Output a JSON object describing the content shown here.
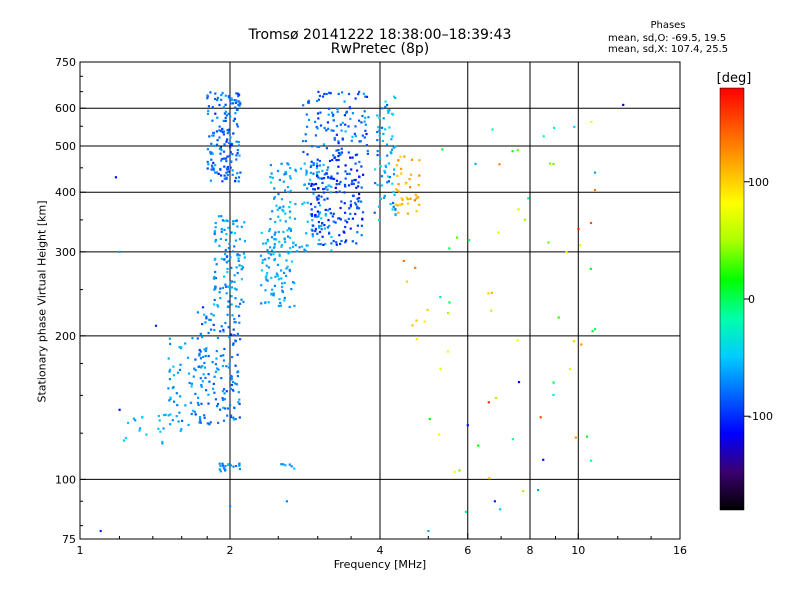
{
  "header": {
    "title_line1": "Tromsø 20141222 18:38:00–18:39:43",
    "title_line2": "RwPretec (8p)",
    "phase_title": "Phases",
    "phase_o": "mean, sd,O: -69.5, 19.5",
    "phase_x": "mean, sd,X: 107.4, 25.5"
  },
  "colorbar": {
    "label": "[deg]",
    "min": -180,
    "max": 180,
    "ticks": [
      {
        "value": 100,
        "label": "100"
      },
      {
        "value": 0,
        "label": "0"
      },
      {
        "value": -100,
        "label": "-100"
      }
    ],
    "stops": [
      "#000000",
      "#3a0070",
      "#0000ff",
      "#0066ff",
      "#00ccff",
      "#00ffaa",
      "#00ff00",
      "#aaff00",
      "#ffff00",
      "#ffaa00",
      "#ff5500",
      "#ff0000"
    ]
  },
  "chart_data": {
    "type": "scatter",
    "title": "Tromsø 20141222 18:38:00–18:39:43",
    "subtitle": "RwPretec (8p)",
    "xlabel": "Frequency [MHz]",
    "ylabel": "Stationary phase Virtual Height [km]",
    "x_scale": "log",
    "y_scale": "log",
    "xlim": [
      1,
      16
    ],
    "ylim": [
      75,
      750
    ],
    "x_ticks": [
      {
        "value": 1,
        "label": "1"
      },
      {
        "value": 2,
        "label": "2"
      },
      {
        "value": 4,
        "label": "4"
      },
      {
        "value": 6,
        "label": "6"
      },
      {
        "value": 8,
        "label": "8"
      },
      {
        "value": 10,
        "label": "10"
      },
      {
        "value": 16,
        "label": "16"
      }
    ],
    "y_ticks": [
      {
        "value": 75,
        "label": "75"
      },
      {
        "value": 100,
        "label": "100"
      },
      {
        "value": 200,
        "label": "200"
      },
      {
        "value": 300,
        "label": "300"
      },
      {
        "value": 400,
        "label": "400"
      },
      {
        "value": 500,
        "label": "500"
      },
      {
        "value": 600,
        "label": "600"
      },
      {
        "value": 750,
        "label": "750"
      }
    ],
    "grid_x": [
      2,
      4,
      6,
      8,
      10
    ],
    "grid_y": [
      100,
      200,
      300,
      400,
      500,
      600
    ],
    "grid": true,
    "color_by": "phase",
    "clusters": [
      {
        "fmin": 1.8,
        "fmax": 2.1,
        "hmin": 420,
        "hmax": 650,
        "count": 160,
        "phase": -80,
        "spread": 30
      },
      {
        "fmin": 1.85,
        "fmax": 2.15,
        "hmin": 230,
        "hmax": 360,
        "count": 110,
        "phase": -65,
        "spread": 25
      },
      {
        "fmin": 1.7,
        "fmax": 2.1,
        "hmin": 130,
        "hmax": 230,
        "count": 140,
        "phase": -75,
        "spread": 25
      },
      {
        "fmin": 1.5,
        "fmax": 1.8,
        "hmin": 130,
        "hmax": 200,
        "count": 60,
        "phase": -65,
        "spread": 20
      },
      {
        "fmin": 1.2,
        "fmax": 1.7,
        "hmin": 118,
        "hmax": 140,
        "count": 25,
        "phase": -55,
        "spread": 15
      },
      {
        "fmin": 1.9,
        "fmax": 2.1,
        "hmin": 104,
        "hmax": 108,
        "count": 20,
        "phase": -70,
        "spread": 20
      },
      {
        "fmin": 2.5,
        "fmax": 2.7,
        "hmin": 103,
        "hmax": 108,
        "count": 6,
        "phase": -60,
        "spread": 20
      },
      {
        "fmin": 2.3,
        "fmax": 2.7,
        "hmin": 230,
        "hmax": 340,
        "count": 90,
        "phase": -60,
        "spread": 20
      },
      {
        "fmin": 2.4,
        "fmax": 3.2,
        "hmin": 300,
        "hmax": 460,
        "count": 140,
        "phase": -60,
        "spread": 22
      },
      {
        "fmin": 2.9,
        "fmax": 3.7,
        "hmin": 310,
        "hmax": 480,
        "count": 170,
        "phase": -95,
        "spread": 25
      },
      {
        "fmin": 2.8,
        "fmax": 3.8,
        "hmin": 480,
        "hmax": 650,
        "count": 110,
        "phase": -80,
        "spread": 30
      },
      {
        "fmin": 3.9,
        "fmax": 4.3,
        "hmin": 350,
        "hmax": 640,
        "count": 70,
        "phase": -60,
        "spread": 40
      },
      {
        "fmin": 4.3,
        "fmax": 4.8,
        "hmin": 360,
        "hmax": 480,
        "count": 40,
        "phase": 110,
        "spread": 25
      },
      {
        "fmin": 4.4,
        "fmax": 5.0,
        "hmin": 180,
        "hmax": 300,
        "count": 8,
        "phase": 100,
        "spread": 40
      },
      {
        "fmin": 5.0,
        "fmax": 11.0,
        "hmin": 80,
        "hmax": 660,
        "count": 55,
        "phase": 40,
        "spread": 130
      }
    ],
    "points": [
      {
        "x": 1.1,
        "y": 78,
        "phase": -100
      },
      {
        "x": 1.18,
        "y": 430,
        "phase": -110
      },
      {
        "x": 1.2,
        "y": 140,
        "phase": -110
      },
      {
        "x": 1.2,
        "y": 300,
        "phase": -60
      },
      {
        "x": 1.42,
        "y": 210,
        "phase": -100
      },
      {
        "x": 2.0,
        "y": 88,
        "phase": -70
      },
      {
        "x": 2.6,
        "y": 90,
        "phase": -70
      },
      {
        "x": 5.0,
        "y": 78,
        "phase": -60
      },
      {
        "x": 6.0,
        "y": 130,
        "phase": -110
      },
      {
        "x": 6.8,
        "y": 90,
        "phase": -100
      },
      {
        "x": 7.6,
        "y": 160,
        "phase": -110
      },
      {
        "x": 8.3,
        "y": 95,
        "phase": -60
      },
      {
        "x": 8.5,
        "y": 110,
        "phase": -110
      },
      {
        "x": 9.8,
        "y": 195,
        "phase": 100
      },
      {
        "x": 12.3,
        "y": 610,
        "phase": -120
      },
      {
        "x": 10.8,
        "y": 440,
        "phase": -60
      },
      {
        "x": 10.6,
        "y": 345,
        "phase": 150
      },
      {
        "x": 10.0,
        "y": 335,
        "phase": 170
      },
      {
        "x": 8.4,
        "y": 135,
        "phase": 150
      }
    ]
  }
}
